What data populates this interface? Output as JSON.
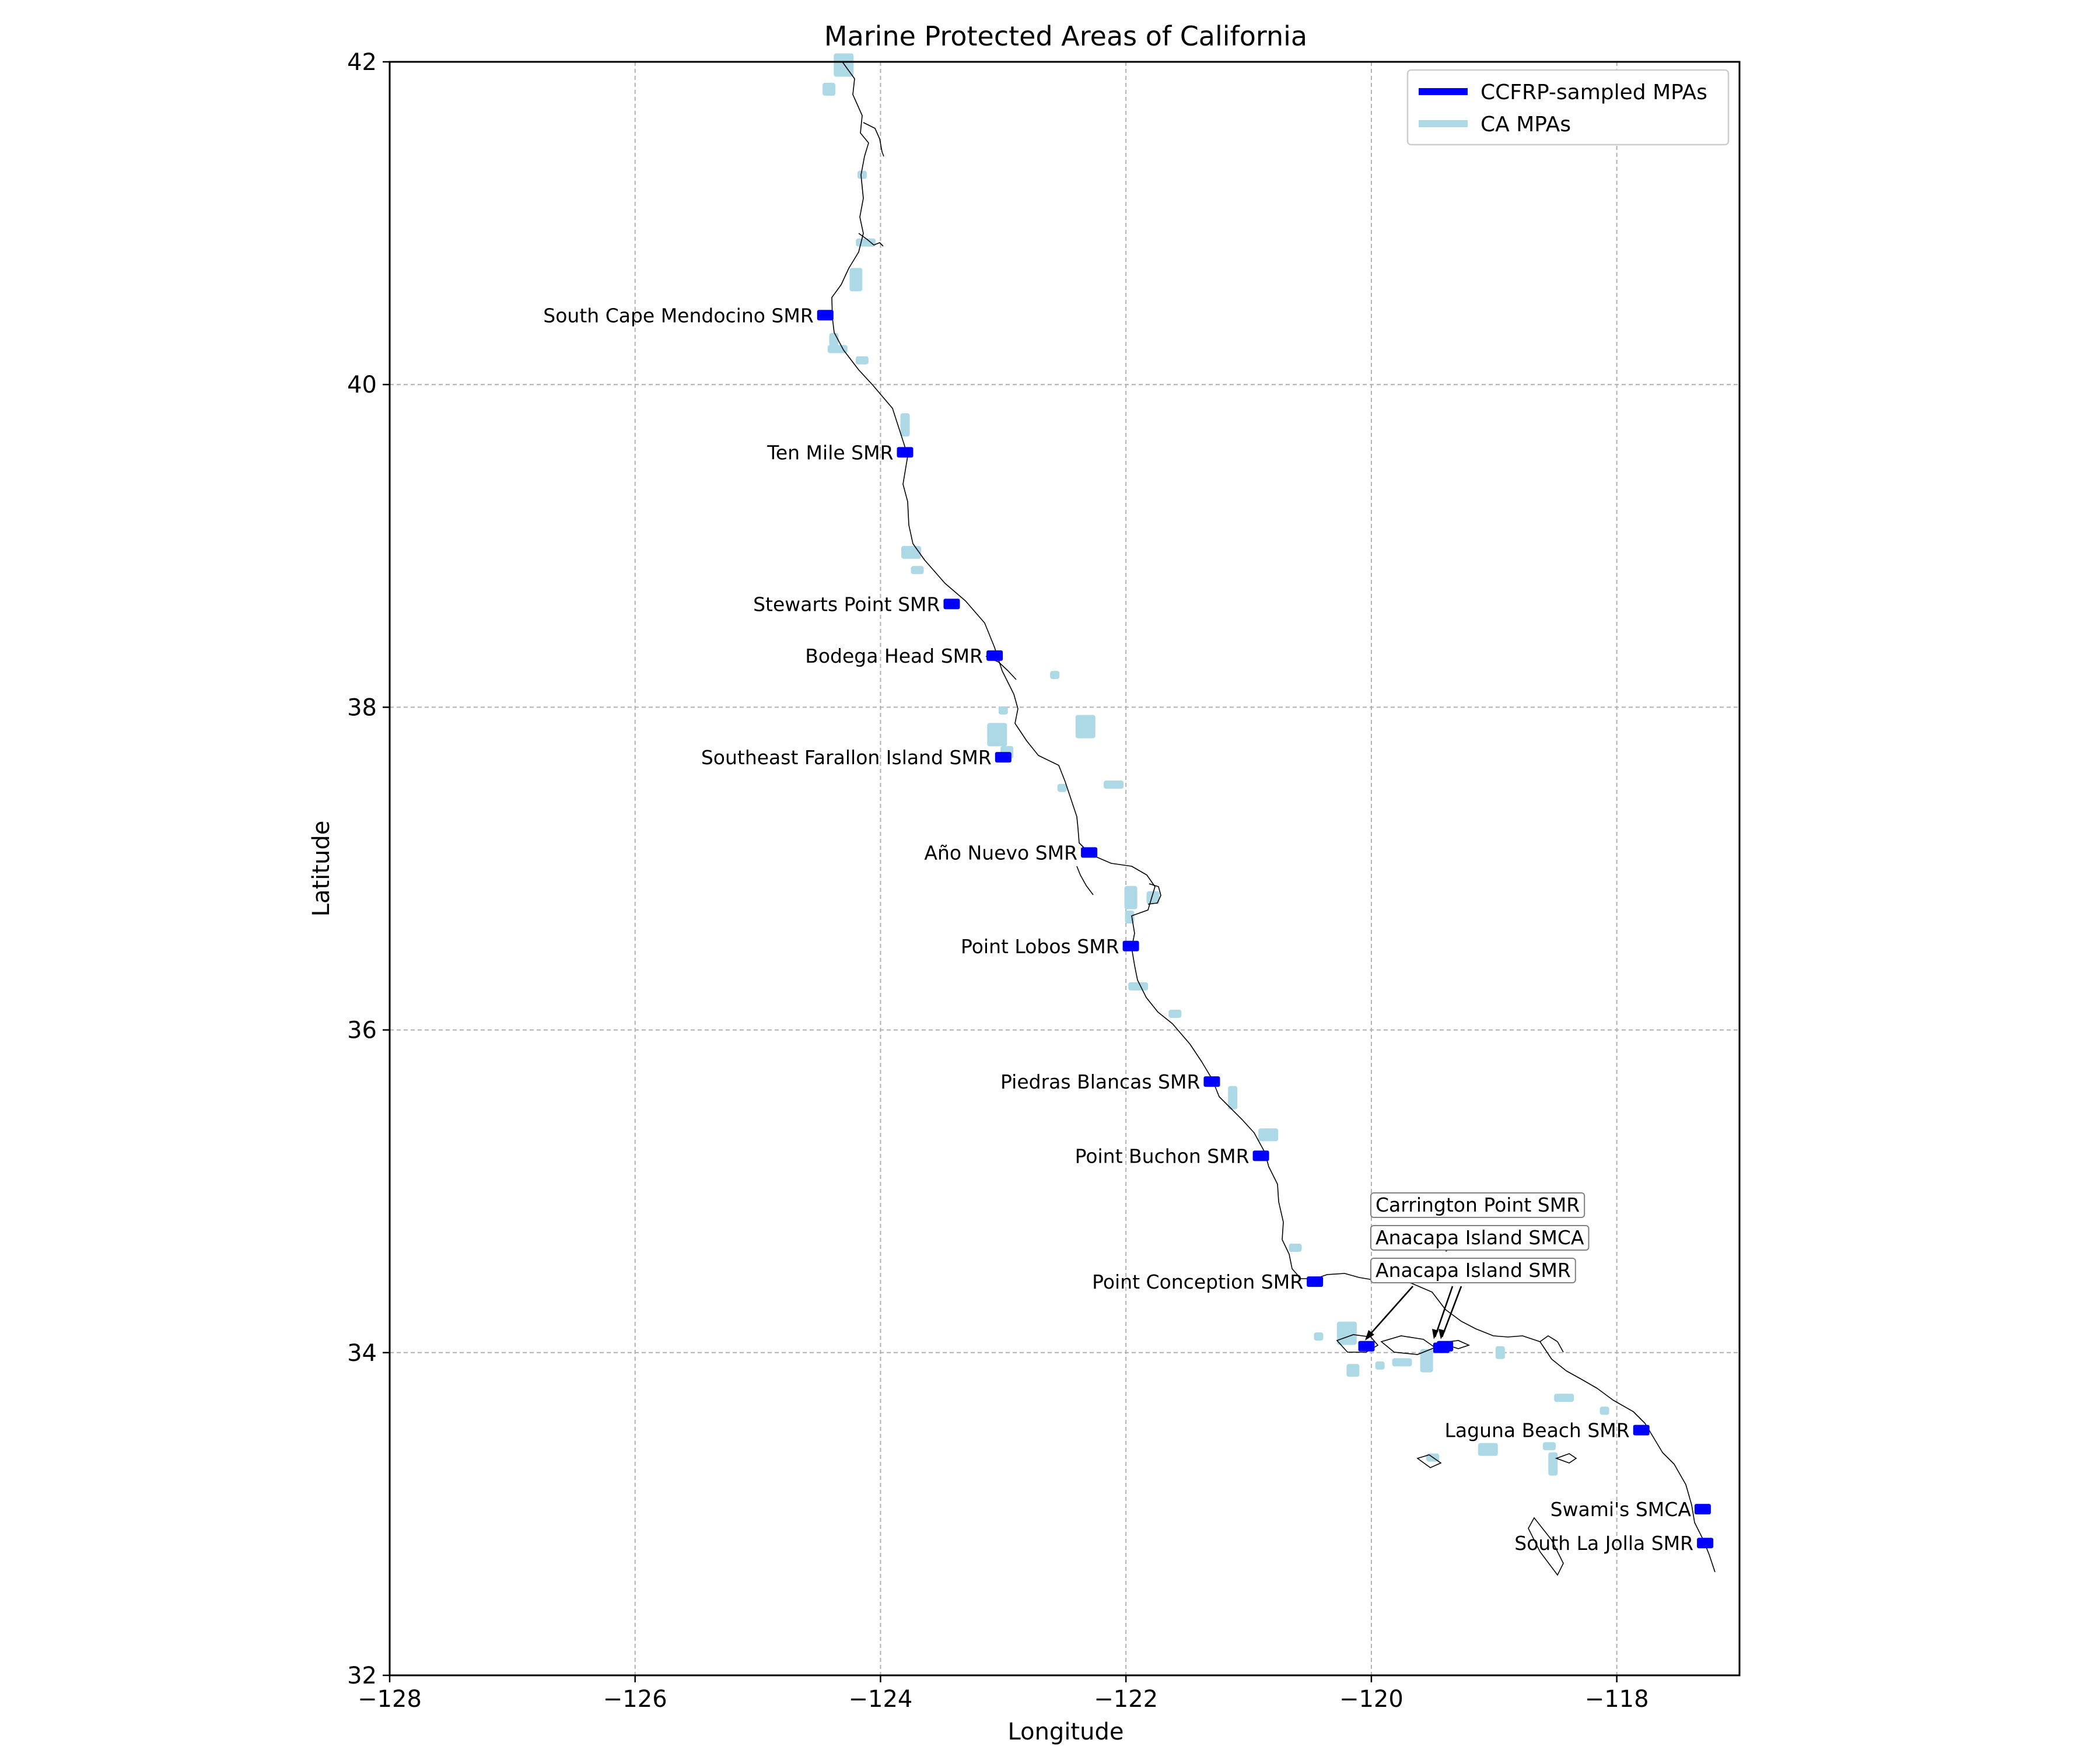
{
  "chart_data": {
    "type": "map",
    "title": "Marine Protected Areas of California",
    "xlabel": "Longitude",
    "ylabel": "Latitude",
    "xlim": [
      -128,
      -117
    ],
    "ylim": [
      32,
      42
    ],
    "xticks": [
      -128,
      -126,
      -124,
      -122,
      -120,
      -118
    ],
    "xtick_labels": [
      "−128",
      "−126",
      "−124",
      "−122",
      "−120",
      "−118"
    ],
    "yticks": [
      32,
      34,
      36,
      38,
      40,
      42
    ],
    "ytick_labels": [
      "32",
      "34",
      "36",
      "38",
      "40",
      "42"
    ],
    "grid": true,
    "legend_position": "top-right",
    "legend": [
      {
        "label": "CCFRP-sampled MPAs",
        "color": "#0000ff",
        "style": "thick-line"
      },
      {
        "label": "CA MPAs",
        "color": "#add8e6",
        "style": "thick-line"
      }
    ],
    "ccfrp_mpas": [
      {
        "name": "South Cape Mendocino SMR",
        "lon": -124.45,
        "lat": 40.43
      },
      {
        "name": "Ten Mile SMR",
        "lon": -123.8,
        "lat": 39.58
      },
      {
        "name": "Stewarts Point SMR",
        "lon": -123.42,
        "lat": 38.64
      },
      {
        "name": "Bodega Head SMR",
        "lon": -123.07,
        "lat": 38.32
      },
      {
        "name": "Southeast Farallon Island SMR",
        "lon": -123.0,
        "lat": 37.69
      },
      {
        "name": "Año Nuevo SMR",
        "lon": -122.3,
        "lat": 37.1
      },
      {
        "name": "Point Lobos SMR",
        "lon": -121.96,
        "lat": 36.52
      },
      {
        "name": "Piedras Blancas SMR",
        "lon": -121.3,
        "lat": 35.68
      },
      {
        "name": "Point Buchon SMR",
        "lon": -120.9,
        "lat": 35.22
      },
      {
        "name": "Point Conception SMR",
        "lon": -120.46,
        "lat": 34.44
      },
      {
        "name": "Carrington Point SMR",
        "lon": -120.04,
        "lat": 34.04,
        "callout": true
      },
      {
        "name": "Anacapa Island SMCA",
        "lon": -119.4,
        "lat": 34.04,
        "callout": true
      },
      {
        "name": "Anacapa Island SMR",
        "lon": -119.43,
        "lat": 34.03,
        "callout": true
      },
      {
        "name": "Laguna Beach SMR",
        "lon": -117.8,
        "lat": 33.52
      },
      {
        "name": "Swami's SMCA",
        "lon": -117.3,
        "lat": 33.03
      },
      {
        "name": "South La Jolla SMR",
        "lon": -117.28,
        "lat": 32.82
      }
    ],
    "ca_mpas": [
      {
        "lon": -124.3,
        "lat": 41.98
      },
      {
        "lon": -124.42,
        "lat": 41.83
      },
      {
        "lon": -124.15,
        "lat": 41.3
      },
      {
        "lon": -124.12,
        "lat": 40.88
      },
      {
        "lon": -124.2,
        "lat": 40.65
      },
      {
        "lon": -124.38,
        "lat": 40.28
      },
      {
        "lon": -124.35,
        "lat": 40.22
      },
      {
        "lon": -124.15,
        "lat": 40.15
      },
      {
        "lon": -123.8,
        "lat": 39.75
      },
      {
        "lon": -123.75,
        "lat": 38.96
      },
      {
        "lon": -123.7,
        "lat": 38.85
      },
      {
        "lon": -123.0,
        "lat": 37.98
      },
      {
        "lon": -123.05,
        "lat": 37.83
      },
      {
        "lon": -122.97,
        "lat": 37.72
      },
      {
        "lon": -122.52,
        "lat": 37.5
      },
      {
        "lon": -122.1,
        "lat": 37.52
      },
      {
        "lon": -121.96,
        "lat": 36.82
      },
      {
        "lon": -121.97,
        "lat": 36.7
      },
      {
        "lon": -121.9,
        "lat": 36.27
      },
      {
        "lon": -121.6,
        "lat": 36.1
      },
      {
        "lon": -121.13,
        "lat": 35.58
      },
      {
        "lon": -120.84,
        "lat": 35.35
      },
      {
        "lon": -120.62,
        "lat": 34.65
      },
      {
        "lon": -120.43,
        "lat": 34.1
      },
      {
        "lon": -120.2,
        "lat": 34.12
      },
      {
        "lon": -120.15,
        "lat": 33.89
      },
      {
        "lon": -119.93,
        "lat": 33.92
      },
      {
        "lon": -119.75,
        "lat": 33.94
      },
      {
        "lon": -119.55,
        "lat": 33.95
      },
      {
        "lon": -118.95,
        "lat": 34.0
      },
      {
        "lon": -118.43,
        "lat": 33.72
      },
      {
        "lon": -118.55,
        "lat": 33.42
      },
      {
        "lon": -118.52,
        "lat": 33.31
      },
      {
        "lon": -119.05,
        "lat": 33.4
      },
      {
        "lon": -119.5,
        "lat": 33.35
      },
      {
        "lon": -122.58,
        "lat": 38.2
      },
      {
        "lon": -122.33,
        "lat": 37.88
      },
      {
        "lon": -121.78,
        "lat": 36.82
      },
      {
        "lon": -118.1,
        "lat": 33.64
      }
    ]
  }
}
